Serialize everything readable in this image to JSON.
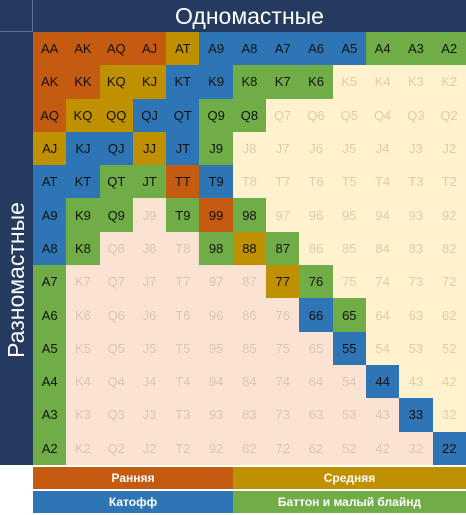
{
  "labels": {
    "suited": "Одномастные",
    "offsuit": "Разномастные"
  },
  "legend": {
    "early": "Ранняя",
    "middle": "Средняя",
    "cutoff": "Катофф",
    "button": "Баттон и малый блайнд"
  },
  "colors": {
    "early": "#c55a11",
    "middle": "#bf9000",
    "cutoff": "#2e75b6",
    "button": "#70ad47",
    "fold_suited": "#fff2cc",
    "fold_offsuit": "#fbe3d3",
    "frame": "#243a5e"
  },
  "grid": {
    "rows": [
      {
        "hands": [
          "AA",
          "AK",
          "AQ",
          "AJ",
          "AT",
          "A9",
          "A8",
          "A7",
          "A6",
          "A5",
          "A4",
          "A3",
          "A2"
        ],
        "ranges": [
          "E",
          "E",
          "E",
          "E",
          "M",
          "C",
          "C",
          "C",
          "C",
          "C",
          "B",
          "B",
          "B"
        ]
      },
      {
        "hands": [
          "AK",
          "KK",
          "KQ",
          "KJ",
          "KT",
          "K9",
          "K8",
          "K7",
          "K6",
          "K5",
          "K4",
          "K3",
          "K2"
        ],
        "ranges": [
          "E",
          "E",
          "M",
          "M",
          "C",
          "C",
          "B",
          "B",
          "B",
          "F",
          "F",
          "F",
          "F"
        ]
      },
      {
        "hands": [
          "AQ",
          "KQ",
          "QQ",
          "QJ",
          "QT",
          "Q9",
          "Q8",
          "Q7",
          "Q6",
          "Q5",
          "Q4",
          "Q3",
          "Q2"
        ],
        "ranges": [
          "E",
          "M",
          "M",
          "C",
          "C",
          "B",
          "B",
          "F",
          "F",
          "F",
          "F",
          "F",
          "F"
        ]
      },
      {
        "hands": [
          "AJ",
          "KJ",
          "QJ",
          "JJ",
          "JT",
          "J9",
          "J8",
          "J7",
          "J6",
          "J5",
          "J4",
          "J3",
          "J2"
        ],
        "ranges": [
          "M",
          "C",
          "C",
          "M",
          "C",
          "B",
          "F",
          "F",
          "F",
          "F",
          "F",
          "F",
          "F"
        ]
      },
      {
        "hands": [
          "AT",
          "KT",
          "QT",
          "JT",
          "TT",
          "T9",
          "T8",
          "T7",
          "T6",
          "T5",
          "T4",
          "T3",
          "T2"
        ],
        "ranges": [
          "C",
          "C",
          "B",
          "B",
          "E",
          "C",
          "F",
          "F",
          "F",
          "F",
          "F",
          "F",
          "F"
        ]
      },
      {
        "hands": [
          "A9",
          "K9",
          "Q9",
          "J9",
          "T9",
          "99",
          "98",
          "97",
          "96",
          "95",
          "94",
          "93",
          "92"
        ],
        "ranges": [
          "C",
          "B",
          "B",
          "F",
          "B",
          "E",
          "B",
          "F",
          "F",
          "F",
          "F",
          "F",
          "F"
        ]
      },
      {
        "hands": [
          "A8",
          "K8",
          "Q8",
          "J8",
          "T8",
          "98",
          "88",
          "87",
          "86",
          "85",
          "84",
          "83",
          "82"
        ],
        "ranges": [
          "C",
          "B",
          "F",
          "F",
          "F",
          "B",
          "M",
          "B",
          "F",
          "F",
          "F",
          "F",
          "F"
        ]
      },
      {
        "hands": [
          "A7",
          "K7",
          "Q7",
          "J7",
          "T7",
          "97",
          "87",
          "77",
          "76",
          "75",
          "74",
          "73",
          "72"
        ],
        "ranges": [
          "B",
          "F",
          "F",
          "F",
          "F",
          "F",
          "F",
          "M",
          "B",
          "F",
          "F",
          "F",
          "F"
        ]
      },
      {
        "hands": [
          "A6",
          "K6",
          "Q6",
          "J6",
          "T6",
          "96",
          "86",
          "76",
          "66",
          "65",
          "64",
          "63",
          "62"
        ],
        "ranges": [
          "B",
          "F",
          "F",
          "F",
          "F",
          "F",
          "F",
          "F",
          "C",
          "B",
          "F",
          "F",
          "F"
        ]
      },
      {
        "hands": [
          "A5",
          "K5",
          "Q5",
          "J5",
          "T5",
          "95",
          "85",
          "75",
          "65",
          "55",
          "54",
          "53",
          "52"
        ],
        "ranges": [
          "B",
          "F",
          "F",
          "F",
          "F",
          "F",
          "F",
          "F",
          "F",
          "C",
          "F",
          "F",
          "F"
        ]
      },
      {
        "hands": [
          "A4",
          "K4",
          "Q4",
          "J4",
          "T4",
          "94",
          "84",
          "74",
          "64",
          "54",
          "44",
          "43",
          "42"
        ],
        "ranges": [
          "B",
          "F",
          "F",
          "F",
          "F",
          "F",
          "F",
          "F",
          "F",
          "F",
          "C",
          "F",
          "F"
        ]
      },
      {
        "hands": [
          "A3",
          "K3",
          "Q3",
          "J3",
          "T3",
          "93",
          "83",
          "73",
          "63",
          "53",
          "43",
          "33",
          "32"
        ],
        "ranges": [
          "B",
          "F",
          "F",
          "F",
          "F",
          "F",
          "F",
          "F",
          "F",
          "F",
          "F",
          "C",
          "F"
        ]
      },
      {
        "hands": [
          "A2",
          "K2",
          "Q2",
          "J2",
          "T2",
          "92",
          "82",
          "72",
          "62",
          "52",
          "42",
          "32",
          "22"
        ],
        "ranges": [
          "B",
          "F",
          "F",
          "F",
          "F",
          "F",
          "F",
          "F",
          "F",
          "F",
          "F",
          "F",
          "C"
        ]
      }
    ]
  }
}
